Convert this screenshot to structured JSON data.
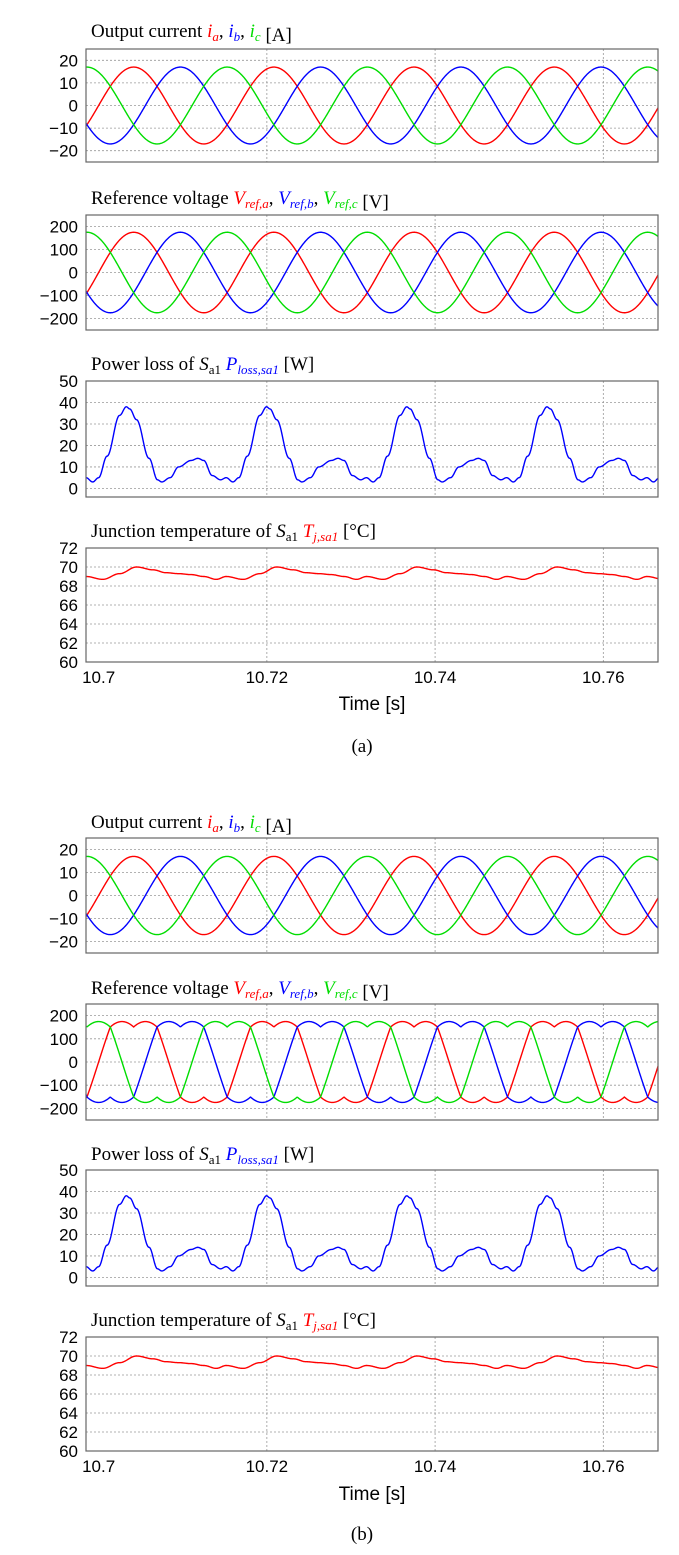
{
  "colors": {
    "a": "#ff0000",
    "b": "#0000ff",
    "c": "#00dd00",
    "frame": "#666666",
    "grid": "#999999"
  },
  "parts": [
    {
      "caption": "(a)",
      "panel_set": "a"
    },
    {
      "caption": "(b)",
      "panel_set": "b"
    }
  ],
  "panel_titles": {
    "current": {
      "text": "Output current ",
      "sym": [
        "i",
        "i",
        "i"
      ],
      "sub": [
        "a",
        "b",
        "c"
      ],
      "unit": " [A]"
    },
    "voltage": {
      "text": "Reference voltage ",
      "sym": [
        "V",
        "V",
        "V"
      ],
      "sub": [
        "ref,a",
        "ref,b",
        "ref,c"
      ],
      "unit": " [V]"
    },
    "loss": {
      "text": "Power loss of ",
      "sym": [
        "S",
        "P"
      ],
      "sub": [
        "a1",
        "loss,sa1"
      ],
      "unit": " [W]"
    },
    "temp": {
      "text": "Junction temperature of ",
      "sym": [
        "S",
        "T"
      ],
      "sub": [
        "a1",
        "j,sa1"
      ],
      "unit": " [°C]"
    }
  },
  "chart_data": [
    {
      "id": "a-current",
      "type": "line",
      "title": "Output current ia, ib, ic [A]",
      "xlim": [
        10.6985,
        10.7665
      ],
      "ylim": [
        -25,
        25
      ],
      "yticks": [
        20,
        10,
        0,
        -10,
        -20
      ],
      "ytick_labels": [
        "20",
        "10",
        "0",
        "−10",
        "−20"
      ],
      "series": [
        {
          "name": "ia",
          "color": "#ff0000",
          "waveform": "sine",
          "amplitude": 17,
          "frequency_hz": 60,
          "phase_deg": 0,
          "phase_ref_time": 10.7
        },
        {
          "name": "ib",
          "color": "#0000ff",
          "waveform": "sine",
          "amplitude": 17,
          "frequency_hz": 60,
          "phase_deg": -120,
          "phase_ref_time": 10.7
        },
        {
          "name": "ic",
          "color": "#00dd00",
          "waveform": "sine",
          "amplitude": 17,
          "frequency_hz": 60,
          "phase_deg": 120,
          "phase_ref_time": 10.7
        }
      ]
    },
    {
      "id": "a-voltage",
      "type": "line",
      "title": "Reference voltage Vref,a, Vref,b, Vref,c [V]",
      "xlim": [
        10.6985,
        10.7665
      ],
      "ylim": [
        -250,
        250
      ],
      "yticks": [
        200,
        100,
        0,
        -100,
        -200
      ],
      "ytick_labels": [
        "200",
        "100",
        "0",
        "−100",
        "−200"
      ],
      "series": [
        {
          "name": "Vref,a",
          "color": "#ff0000",
          "waveform": "sine",
          "amplitude": 175,
          "frequency_hz": 60,
          "phase_deg": 0,
          "phase_ref_time": 10.7
        },
        {
          "name": "Vref,b",
          "color": "#0000ff",
          "waveform": "sine",
          "amplitude": 175,
          "frequency_hz": 60,
          "phase_deg": -120,
          "phase_ref_time": 10.7
        },
        {
          "name": "Vref,c",
          "color": "#00dd00",
          "waveform": "sine",
          "amplitude": 175,
          "frequency_hz": 60,
          "phase_deg": 120,
          "phase_ref_time": 10.7
        }
      ]
    },
    {
      "id": "a-loss",
      "type": "line",
      "title": "Power loss of Sa1 Ploss,sa1 [W]",
      "xlim": [
        10.6985,
        10.7665
      ],
      "ylim": [
        -4,
        50
      ],
      "yticks": [
        50,
        40,
        30,
        20,
        10,
        0
      ],
      "ytick_labels": [
        "50",
        "40",
        "30",
        "20",
        "10",
        "0"
      ],
      "series": [
        {
          "name": "Ploss,sa1",
          "color": "#0000ff",
          "waveform": "piecewise-periodic",
          "period_s": 0.016667,
          "t0": 10.6985,
          "x_offsets": [
            0,
            0.0008,
            0.0015,
            0.0025,
            0.004,
            0.0048,
            0.0052,
            0.006,
            0.0075,
            0.0085,
            0.009,
            0.01,
            0.011,
            0.0125,
            0.0133,
            0.014,
            0.015,
            0.016,
            0.016667
          ],
          "y": [
            5,
            3,
            5,
            15,
            34,
            38,
            37,
            32,
            14,
            4,
            3,
            5,
            10,
            13,
            14,
            13,
            6,
            4,
            5
          ]
        }
      ]
    },
    {
      "id": "a-temp",
      "type": "line",
      "title": "Junction temperature of Sa1 Tj,sa1 [°C]",
      "xlabel": "Time [s]",
      "xlim": [
        10.6985,
        10.7665
      ],
      "ylim": [
        60,
        72
      ],
      "yticks": [
        72,
        70,
        68,
        66,
        64,
        62,
        60
      ],
      "ytick_labels": [
        "72",
        "70",
        "68",
        "66",
        "64",
        "62",
        "60"
      ],
      "xticks": [
        10.7,
        10.72,
        10.74,
        10.76
      ],
      "xtick_labels": [
        "10.7",
        "10.72",
        "10.74",
        "10.76"
      ],
      "series": [
        {
          "name": "Tj,sa1",
          "color": "#ff0000",
          "waveform": "piecewise-periodic",
          "period_s": 0.016667,
          "t0": 10.6985,
          "x_offsets": [
            0,
            0.002,
            0.004,
            0.006,
            0.008,
            0.0095,
            0.011,
            0.0125,
            0.014,
            0.0155,
            0.016667
          ],
          "y": [
            69.0,
            68.7,
            69.3,
            70.0,
            69.7,
            69.4,
            69.3,
            69.2,
            69.0,
            68.7,
            69.0
          ]
        }
      ]
    },
    {
      "id": "b-current",
      "type": "line",
      "title": "Output current ia, ib, ic [A]",
      "xlim": [
        10.6985,
        10.7665
      ],
      "ylim": [
        -25,
        25
      ],
      "yticks": [
        20,
        10,
        0,
        -10,
        -20
      ],
      "ytick_labels": [
        "20",
        "10",
        "0",
        "−10",
        "−20"
      ],
      "series": [
        {
          "name": "ia",
          "color": "#ff0000",
          "waveform": "sine",
          "amplitude": 17,
          "frequency_hz": 60,
          "phase_deg": 0,
          "phase_ref_time": 10.7
        },
        {
          "name": "ib",
          "color": "#0000ff",
          "waveform": "sine",
          "amplitude": 17,
          "frequency_hz": 60,
          "phase_deg": -120,
          "phase_ref_time": 10.7
        },
        {
          "name": "ic",
          "color": "#00dd00",
          "waveform": "sine",
          "amplitude": 17,
          "frequency_hz": 60,
          "phase_deg": 120,
          "phase_ref_time": 10.7
        }
      ]
    },
    {
      "id": "b-voltage",
      "type": "line",
      "title": "Reference voltage Vref,a, Vref,b, Vref,c [V]",
      "xlim": [
        10.6985,
        10.7665
      ],
      "ylim": [
        -250,
        250
      ],
      "yticks": [
        200,
        100,
        0,
        -100,
        -200
      ],
      "ytick_labels": [
        "200",
        "100",
        "0",
        "−100",
        "−200"
      ],
      "series": [
        {
          "name": "Vref,a",
          "color": "#ff0000",
          "waveform": "min-max-injected-sine",
          "amplitude": 175,
          "frequency_hz": 60,
          "phase_deg": 0,
          "phase_ref_time": 10.7
        },
        {
          "name": "Vref,b",
          "color": "#0000ff",
          "waveform": "min-max-injected-sine",
          "amplitude": 175,
          "frequency_hz": 60,
          "phase_deg": -120,
          "phase_ref_time": 10.7
        },
        {
          "name": "Vref,c",
          "color": "#00dd00",
          "waveform": "min-max-injected-sine",
          "amplitude": 175,
          "frequency_hz": 60,
          "phase_deg": 120,
          "phase_ref_time": 10.7
        }
      ]
    },
    {
      "id": "b-loss",
      "type": "line",
      "title": "Power loss of Sa1 Ploss,sa1 [W]",
      "xlim": [
        10.6985,
        10.7665
      ],
      "ylim": [
        -4,
        50
      ],
      "yticks": [
        50,
        40,
        30,
        20,
        10,
        0
      ],
      "ytick_labels": [
        "50",
        "40",
        "30",
        "20",
        "10",
        "0"
      ],
      "series": [
        {
          "name": "Ploss,sa1",
          "color": "#0000ff",
          "waveform": "piecewise-periodic",
          "period_s": 0.016667,
          "t0": 10.6985,
          "x_offsets": [
            0,
            0.0008,
            0.0015,
            0.0025,
            0.004,
            0.0048,
            0.0052,
            0.006,
            0.0075,
            0.0085,
            0.009,
            0.01,
            0.011,
            0.0125,
            0.0133,
            0.014,
            0.015,
            0.016,
            0.016667
          ],
          "y": [
            5,
            3,
            5,
            15,
            34,
            38,
            37,
            32,
            14,
            4,
            3,
            5,
            10,
            13,
            14,
            13,
            6,
            4,
            5
          ]
        }
      ]
    },
    {
      "id": "b-temp",
      "type": "line",
      "title": "Junction temperature of Sa1 Tj,sa1 [°C]",
      "xlabel": "Time [s]",
      "xlim": [
        10.6985,
        10.7665
      ],
      "ylim": [
        60,
        72
      ],
      "yticks": [
        72,
        70,
        68,
        66,
        64,
        62,
        60
      ],
      "ytick_labels": [
        "72",
        "70",
        "68",
        "66",
        "64",
        "62",
        "60"
      ],
      "xticks": [
        10.7,
        10.72,
        10.74,
        10.76
      ],
      "xtick_labels": [
        "10.7",
        "10.72",
        "10.74",
        "10.76"
      ],
      "series": [
        {
          "name": "Tj,sa1",
          "color": "#ff0000",
          "waveform": "piecewise-periodic",
          "period_s": 0.016667,
          "t0": 10.6985,
          "x_offsets": [
            0,
            0.002,
            0.004,
            0.006,
            0.008,
            0.0095,
            0.011,
            0.0125,
            0.014,
            0.0155,
            0.016667
          ],
          "y": [
            69.0,
            68.7,
            69.3,
            70.0,
            69.7,
            69.4,
            69.3,
            69.2,
            69.0,
            68.7,
            69.0
          ]
        }
      ]
    }
  ]
}
